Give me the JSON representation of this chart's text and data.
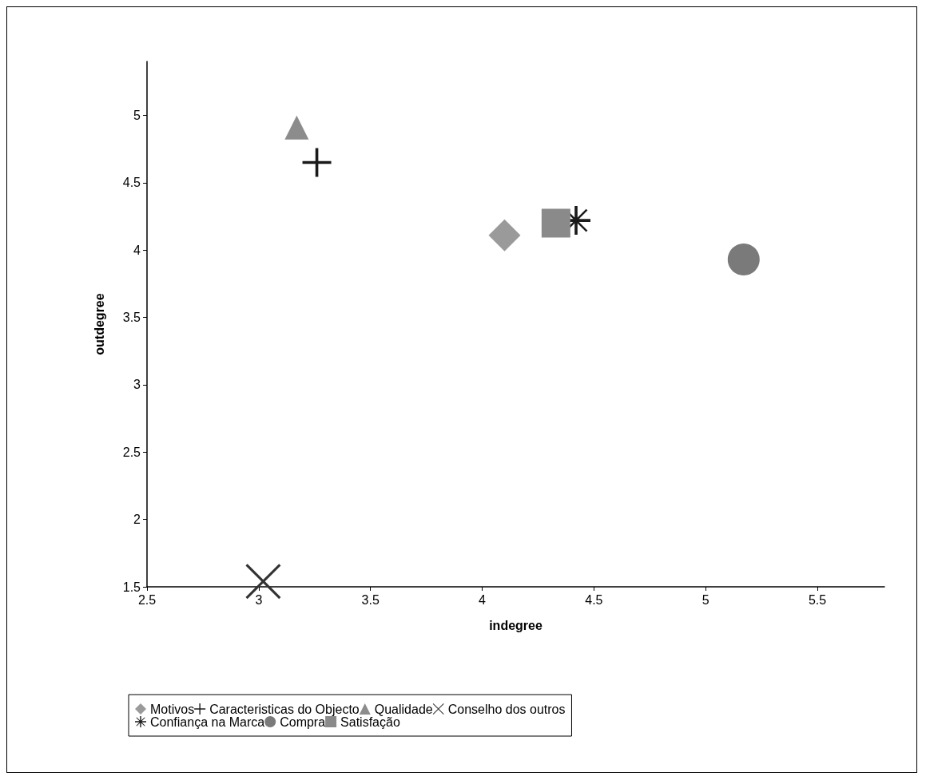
{
  "chart_data": {
    "type": "scatter",
    "xlabel": "indegree",
    "ylabel": "outdegree",
    "xlim": [
      2.5,
      5.8
    ],
    "xticks": [
      2.5,
      3,
      3.5,
      4,
      4.5,
      5,
      5.5
    ],
    "ylim": [
      1.5,
      5.4
    ],
    "yticks": [
      1.5,
      2,
      2.5,
      3,
      3.5,
      4,
      4.5,
      5
    ],
    "grid": false,
    "legend": "bottom",
    "series": [
      {
        "name": "Motivos",
        "color": "#9a9a9a",
        "marker": "diamond",
        "x": [
          4.1
        ],
        "values": [
          4.11
        ]
      },
      {
        "name": "Caracteristicas do Objecto",
        "color": "#1a1a1a",
        "marker": "cross",
        "x": [
          3.26
        ],
        "values": [
          4.65
        ]
      },
      {
        "name": "Qualidade",
        "color": "#8c8c8c",
        "marker": "triangle",
        "x": [
          3.17
        ],
        "values": [
          4.91
        ]
      },
      {
        "name": "Conselho dos outros",
        "color": "#333333",
        "marker": "x",
        "x": [
          3.02
        ],
        "values": [
          1.54
        ]
      },
      {
        "name": "Confiança na Marca",
        "color": "#1a1a1a",
        "marker": "star",
        "x": [
          4.42
        ],
        "values": [
          4.22
        ]
      },
      {
        "name": "Compra",
        "color": "#7a7a7a",
        "marker": "circle",
        "x": [
          5.17
        ],
        "values": [
          3.93
        ]
      },
      {
        "name": "Satisfação",
        "color": "#8a8a8a",
        "marker": "square",
        "x": [
          4.33
        ],
        "values": [
          4.2
        ]
      }
    ]
  }
}
